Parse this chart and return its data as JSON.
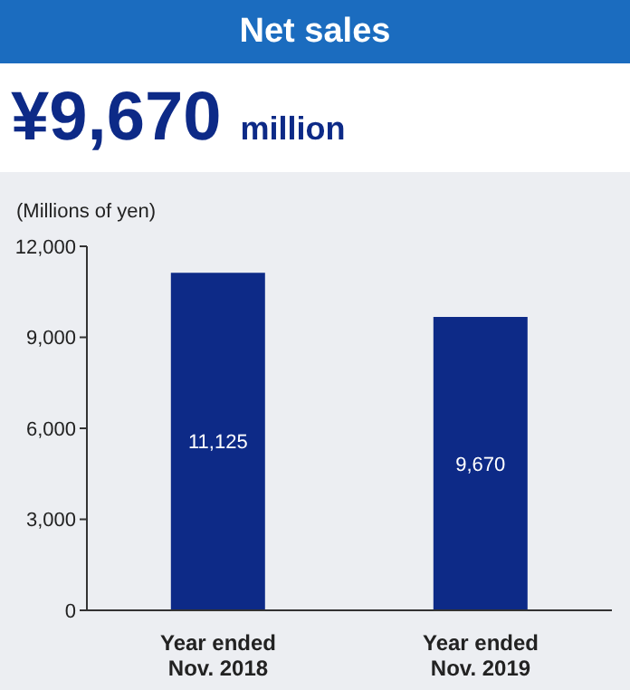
{
  "chart_data": {
    "type": "bar",
    "title": "Net sales",
    "subtitle": "¥9,670 million",
    "ylabel": "(Millions of yen)",
    "categories": [
      "Year ended\nNov. 2018",
      "Year ended\nNov. 2019"
    ],
    "values": [
      11125,
      9670
    ],
    "value_labels": [
      "11,125",
      "9,670"
    ],
    "color": "#0d2a87",
    "ylim": [
      0,
      12000
    ],
    "yticks": [
      0,
      {
        "value": 3000,
        "label": "3,000"
      },
      {
        "value": 6000,
        "label": "6,000"
      },
      {
        "value": 9000,
        "label": "9,000"
      },
      {
        "value": 12000,
        "label": "12,000"
      }
    ],
    "grid": false,
    "legend": false
  }
}
